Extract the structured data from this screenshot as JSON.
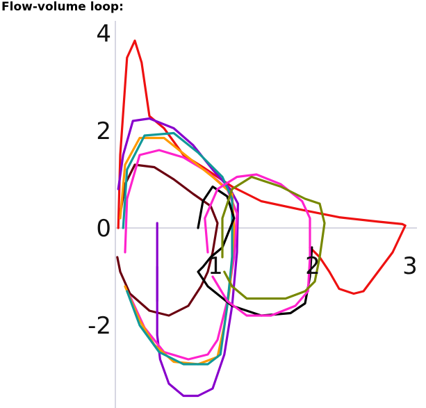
{
  "title": "Flow-volume loop:",
  "chart_data": {
    "type": "line",
    "title": "Flow-volume loop:",
    "xlabel": "",
    "ylabel": "",
    "xlim": [
      -0.5,
      3.0
    ],
    "ylim": [
      -3.8,
      4.4
    ],
    "grid": false,
    "x_tick_labels": [
      "1",
      "2",
      "3"
    ],
    "x_ticks": [
      1,
      2,
      3
    ],
    "y_tick_labels": [
      "4",
      "2",
      "0",
      "-2"
    ],
    "y_ticks": [
      4,
      2,
      0,
      -2
    ],
    "series": [
      {
        "color": "#ee1111",
        "points": [
          [
            0.03,
            0
          ],
          [
            0.05,
            1.5
          ],
          [
            0.12,
            3.5
          ],
          [
            0.2,
            3.85
          ],
          [
            0.27,
            3.4
          ],
          [
            0.35,
            2.3
          ],
          [
            0.5,
            2.05
          ],
          [
            0.7,
            1.5
          ],
          [
            0.9,
            1.25
          ],
          [
            1.2,
            0.85
          ],
          [
            1.5,
            0.55
          ],
          [
            1.9,
            0.38
          ],
          [
            2.3,
            0.22
          ],
          [
            2.7,
            0.13
          ],
          [
            2.95,
            0.08
          ],
          [
            2.98,
            0.05
          ],
          [
            2.85,
            -0.5
          ],
          [
            2.7,
            -0.9
          ],
          [
            2.55,
            -1.3
          ],
          [
            2.45,
            -1.35
          ],
          [
            2.3,
            -1.25
          ],
          [
            2.2,
            -0.9
          ],
          [
            2.1,
            -0.6
          ],
          [
            2.0,
            -0.4
          ]
        ]
      },
      {
        "color": "#6a0010",
        "points": [
          [
            0.06,
            0.4
          ],
          [
            0.1,
            0.9
          ],
          [
            0.2,
            1.3
          ],
          [
            0.4,
            1.25
          ],
          [
            0.6,
            1.0
          ],
          [
            0.8,
            0.7
          ],
          [
            0.98,
            0.45
          ],
          [
            1.05,
            0.1
          ],
          [
            1.0,
            -0.5
          ],
          [
            0.95,
            -0.9
          ],
          [
            0.88,
            -1.2
          ],
          [
            0.75,
            -1.6
          ],
          [
            0.55,
            -1.8
          ],
          [
            0.35,
            -1.7
          ],
          [
            0.15,
            -1.35
          ],
          [
            0.05,
            -0.9
          ],
          [
            0.02,
            -0.6
          ]
        ]
      },
      {
        "color": "#8800cc",
        "points": [
          [
            0.03,
            0.8
          ],
          [
            0.08,
            1.5
          ],
          [
            0.18,
            2.2
          ],
          [
            0.35,
            2.25
          ],
          [
            0.6,
            2.05
          ],
          [
            0.8,
            1.7
          ],
          [
            1.0,
            1.2
          ],
          [
            1.18,
            0.8
          ],
          [
            1.26,
            0.5
          ],
          [
            1.25,
            -0.5
          ],
          [
            1.2,
            -1.6
          ],
          [
            1.12,
            -2.6
          ],
          [
            1.0,
            -3.3
          ],
          [
            0.85,
            -3.45
          ],
          [
            0.7,
            -3.45
          ],
          [
            0.55,
            -3.2
          ],
          [
            0.46,
            -2.7
          ],
          [
            0.43,
            -2.2
          ],
          [
            0.43,
            -0.8
          ]
        ]
      },
      {
        "color": "#8800cc",
        "points": [
          [
            0.43,
            0.1
          ],
          [
            0.43,
            -1.5
          ]
        ]
      },
      {
        "color": "#ff22cc",
        "points": [
          [
            0.1,
            -0.5
          ],
          [
            0.12,
            0.6
          ],
          [
            0.25,
            1.5
          ],
          [
            0.45,
            1.6
          ],
          [
            0.7,
            1.45
          ],
          [
            0.95,
            1.15
          ],
          [
            1.15,
            0.8
          ],
          [
            1.25,
            0.3
          ],
          [
            1.22,
            -0.6
          ],
          [
            1.15,
            -1.5
          ],
          [
            1.05,
            -2.3
          ],
          [
            0.95,
            -2.6
          ],
          [
            0.75,
            -2.7
          ],
          [
            0.5,
            -2.55
          ],
          [
            0.3,
            -2.05
          ],
          [
            0.15,
            -1.4
          ]
        ]
      },
      {
        "color": "#ff9900",
        "points": [
          [
            0.05,
            0.2
          ],
          [
            0.1,
            1.3
          ],
          [
            0.25,
            1.85
          ],
          [
            0.5,
            1.85
          ],
          [
            0.75,
            1.45
          ],
          [
            1.0,
            1.05
          ],
          [
            1.2,
            0.7
          ],
          [
            1.22,
            0.0
          ],
          [
            1.18,
            -1.2
          ],
          [
            1.12,
            -2.0
          ],
          [
            1.05,
            -2.65
          ],
          [
            0.85,
            -2.8
          ],
          [
            0.6,
            -2.75
          ],
          [
            0.4,
            -2.4
          ],
          [
            0.25,
            -1.9
          ],
          [
            0.1,
            -1.2
          ]
        ]
      },
      {
        "color": "#119999",
        "points": [
          [
            0.08,
            0
          ],
          [
            0.12,
            1.2
          ],
          [
            0.3,
            1.9
          ],
          [
            0.6,
            1.95
          ],
          [
            0.85,
            1.55
          ],
          [
            1.1,
            1.05
          ],
          [
            1.2,
            0.6
          ],
          [
            1.2,
            -0.6
          ],
          [
            1.15,
            -1.6
          ],
          [
            1.08,
            -2.6
          ],
          [
            0.95,
            -2.8
          ],
          [
            0.7,
            -2.8
          ],
          [
            0.45,
            -2.55
          ],
          [
            0.25,
            -2.0
          ],
          [
            0.12,
            -1.3
          ]
        ]
      },
      {
        "color": "#000000",
        "points": [
          [
            0.85,
            0
          ],
          [
            0.9,
            0.55
          ],
          [
            1.0,
            0.85
          ],
          [
            1.15,
            0.65
          ],
          [
            1.22,
            0.2
          ],
          [
            1.1,
            -0.4
          ],
          [
            0.98,
            -0.6
          ],
          [
            0.9,
            -0.8
          ],
          [
            0.85,
            -0.9
          ],
          [
            0.95,
            -1.2
          ],
          [
            1.2,
            -1.6
          ],
          [
            1.5,
            -1.8
          ],
          [
            1.8,
            -1.75
          ],
          [
            1.95,
            -1.55
          ],
          [
            2.0,
            -1.0
          ],
          [
            2.02,
            -0.4
          ]
        ]
      },
      {
        "color": "#ff22cc",
        "points": [
          [
            0.95,
            -0.5
          ],
          [
            0.92,
            0.2
          ],
          [
            1.05,
            0.8
          ],
          [
            1.25,
            1.05
          ],
          [
            1.45,
            1.1
          ],
          [
            1.7,
            0.9
          ],
          [
            1.92,
            0.55
          ],
          [
            2.0,
            0.2
          ],
          [
            2.0,
            -0.6
          ],
          [
            1.98,
            -1.3
          ],
          [
            1.85,
            -1.6
          ],
          [
            1.6,
            -1.8
          ],
          [
            1.35,
            -1.8
          ],
          [
            1.15,
            -1.5
          ],
          [
            1.0,
            -1.0
          ]
        ]
      },
      {
        "color": "#778800",
        "points": [
          [
            1.1,
            -0.6
          ],
          [
            1.1,
            0.2
          ],
          [
            1.2,
            0.8
          ],
          [
            1.4,
            1.05
          ],
          [
            1.7,
            0.85
          ],
          [
            1.95,
            0.6
          ],
          [
            2.1,
            0.5
          ],
          [
            2.15,
            0.1
          ],
          [
            2.1,
            -0.6
          ],
          [
            2.05,
            -1.1
          ],
          [
            1.95,
            -1.3
          ],
          [
            1.75,
            -1.45
          ],
          [
            1.55,
            -1.45
          ],
          [
            1.35,
            -1.45
          ],
          [
            1.2,
            -1.2
          ],
          [
            1.12,
            -0.9
          ]
        ]
      }
    ]
  }
}
